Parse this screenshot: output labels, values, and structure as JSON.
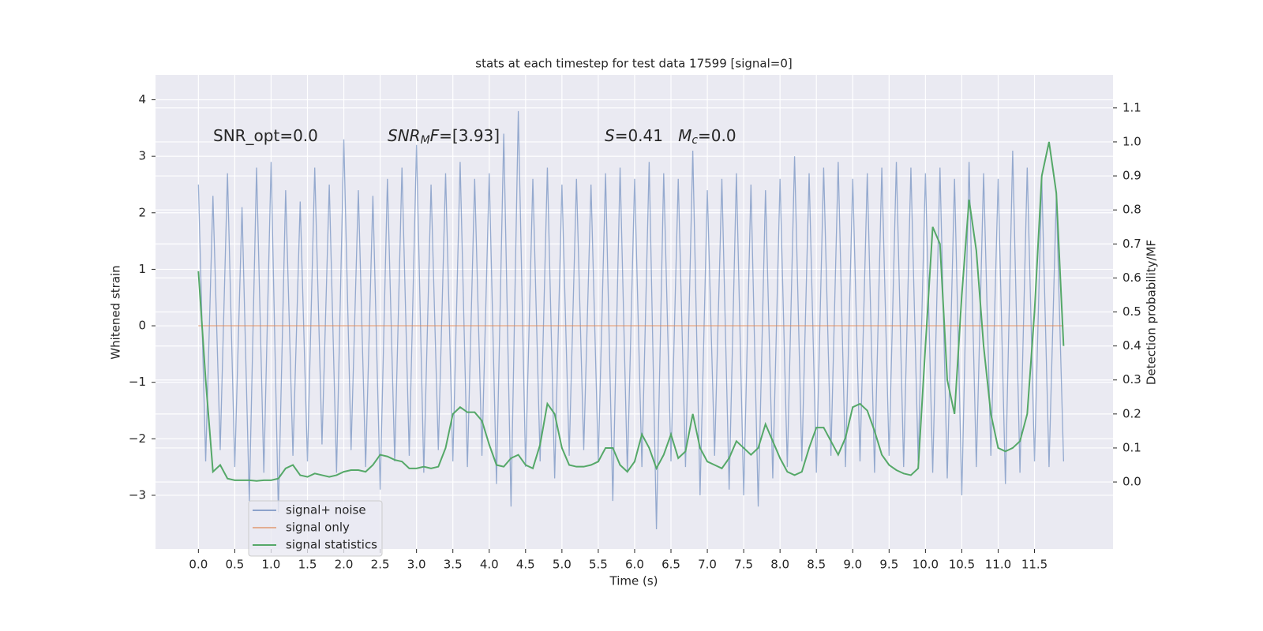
{
  "chart_data": {
    "type": "line",
    "title": "stats at each timestep for test data 17599 [signal=0]",
    "xlabel": "Time (s)",
    "ylabel": "Whitened strain",
    "y2label": "Detection probability/MF",
    "x": [
      0,
      0.1,
      0.2,
      0.3,
      0.4,
      0.5,
      0.6,
      0.7,
      0.8,
      0.9,
      1,
      1.1,
      1.2,
      1.3,
      1.4,
      1.5,
      1.6,
      1.7,
      1.8,
      1.9,
      2,
      2.1,
      2.2,
      2.3,
      2.4,
      2.5,
      2.6,
      2.7,
      2.8,
      2.9,
      3,
      3.1,
      3.2,
      3.3,
      3.4,
      3.5,
      3.6,
      3.7,
      3.8,
      3.9,
      4,
      4.1,
      4.2,
      4.3,
      4.4,
      4.5,
      4.6,
      4.7,
      4.8,
      4.9,
      5,
      5.1,
      5.2,
      5.3,
      5.4,
      5.5,
      5.6,
      5.7,
      5.8,
      5.9,
      6,
      6.1,
      6.2,
      6.3,
      6.4,
      6.5,
      6.6,
      6.7,
      6.8,
      6.9,
      7,
      7.1,
      7.2,
      7.3,
      7.4,
      7.5,
      7.6,
      7.7,
      7.8,
      7.9,
      8,
      8.1,
      8.2,
      8.3,
      8.4,
      8.5,
      8.6,
      8.7,
      8.8,
      8.9,
      9,
      9.1,
      9.2,
      9.3,
      9.4,
      9.5,
      9.6,
      9.7,
      9.8,
      9.9,
      10,
      10.1,
      10.2,
      10.3,
      10.4,
      10.5,
      10.6,
      10.7,
      10.8,
      10.9,
      11,
      11.1,
      11.2,
      11.3,
      11.4,
      11.5,
      11.6,
      11.7,
      11.8,
      11.9
    ],
    "series": [
      {
        "name": "signal+ noise",
        "color": "#4c72b0",
        "values": [
          2.5,
          -2.4,
          2.3,
          -2.2,
          2.7,
          -2.5,
          2.1,
          -3.1,
          2.8,
          -2.6,
          2.9,
          -3.3,
          2.4,
          -2.3,
          2.2,
          -2.4,
          2.8,
          -2.1,
          2.5,
          -2.6,
          3.3,
          -2.2,
          2.4,
          -2.5,
          2.3,
          -2.9,
          2.6,
          -2.4,
          2.8,
          -2.3,
          3.2,
          -2.6,
          2.5,
          -2.2,
          2.7,
          -2.4,
          2.9,
          -2.5,
          2.6,
          -2.3,
          2.7,
          -2.8,
          3.4,
          -3.2,
          3.8,
          -2.5,
          2.6,
          -2.4,
          2.8,
          -2.7,
          2.5,
          -2.3,
          2.6,
          -2.2,
          2.5,
          -2.4,
          2.7,
          -3.1,
          2.8,
          -2.6,
          2.6,
          -2.5,
          2.9,
          -3.6,
          2.7,
          -2.4,
          2.6,
          -2.5,
          3.1,
          -3.0,
          2.4,
          -2.3,
          2.6,
          -2.9,
          2.7,
          -3.0,
          2.5,
          -3.2,
          2.4,
          -2.7,
          2.6,
          -2.5,
          3.0,
          -2.4,
          2.7,
          -2.6,
          2.8,
          -2.3,
          2.9,
          -2.5,
          2.6,
          -2.4,
          2.7,
          -2.6,
          2.8,
          -2.3,
          2.9,
          -2.5,
          2.8,
          -2.4,
          2.7,
          -2.6,
          2.8,
          -2.7,
          2.6,
          -3.0,
          2.9,
          -2.5,
          2.7,
          -2.3,
          2.6,
          -2.8,
          3.1,
          -2.6,
          2.8,
          -2.4,
          2.6,
          -2.5,
          2.3,
          -2.4
        ]
      },
      {
        "name": "signal only",
        "color": "#dd8452",
        "values": [
          0,
          0,
          0,
          0,
          0,
          0,
          0,
          0,
          0,
          0,
          0,
          0,
          0,
          0,
          0,
          0,
          0,
          0,
          0,
          0,
          0,
          0,
          0,
          0,
          0,
          0,
          0,
          0,
          0,
          0,
          0,
          0,
          0,
          0,
          0,
          0,
          0,
          0,
          0,
          0,
          0,
          0,
          0,
          0,
          0,
          0,
          0,
          0,
          0,
          0,
          0,
          0,
          0,
          0,
          0,
          0,
          0,
          0,
          0,
          0,
          0,
          0,
          0,
          0,
          0,
          0,
          0,
          0,
          0,
          0,
          0,
          0,
          0,
          0,
          0,
          0,
          0,
          0,
          0,
          0,
          0,
          0,
          0,
          0,
          0,
          0,
          0,
          0,
          0,
          0,
          0,
          0,
          0,
          0,
          0,
          0,
          0,
          0,
          0,
          0,
          0,
          0,
          0,
          0,
          0,
          0,
          0,
          0,
          0,
          0,
          0,
          0,
          0,
          0,
          0,
          0,
          0,
          0,
          0,
          0
        ]
      },
      {
        "name": "signal statistics",
        "color": "#55a868",
        "axis": "y2",
        "values": [
          0.62,
          0.3,
          0.03,
          0.05,
          0.01,
          0.005,
          0.005,
          0.005,
          0.003,
          0.005,
          0.005,
          0.01,
          0.04,
          0.05,
          0.02,
          0.015,
          0.025,
          0.02,
          0.015,
          0.02,
          0.03,
          0.035,
          0.035,
          0.03,
          0.05,
          0.08,
          0.075,
          0.065,
          0.06,
          0.04,
          0.04,
          0.045,
          0.04,
          0.045,
          0.1,
          0.2,
          0.22,
          0.205,
          0.205,
          0.18,
          0.11,
          0.05,
          0.045,
          0.07,
          0.08,
          0.05,
          0.04,
          0.11,
          0.23,
          0.2,
          0.1,
          0.05,
          0.045,
          0.045,
          0.05,
          0.06,
          0.1,
          0.1,
          0.05,
          0.03,
          0.06,
          0.14,
          0.1,
          0.04,
          0.08,
          0.14,
          0.07,
          0.09,
          0.2,
          0.1,
          0.06,
          0.05,
          0.04,
          0.07,
          0.12,
          0.1,
          0.08,
          0.1,
          0.17,
          0.12,
          0.07,
          0.03,
          0.02,
          0.03,
          0.1,
          0.16,
          0.16,
          0.12,
          0.08,
          0.13,
          0.22,
          0.23,
          0.21,
          0.15,
          0.08,
          0.05,
          0.035,
          0.025,
          0.02,
          0.04,
          0.4,
          0.75,
          0.7,
          0.3,
          0.2,
          0.55,
          0.83,
          0.68,
          0.4,
          0.2,
          0.1,
          0.09,
          0.1,
          0.12,
          0.2,
          0.5,
          0.9,
          1.0,
          0.85,
          0.4
        ]
      }
    ],
    "annotations": [
      {
        "parts": [
          "SNR_opt=0.0"
        ],
        "styles": [
          "normal"
        ]
      },
      {
        "parts": [
          "SNR",
          "M",
          "F",
          "=[3.93]"
        ],
        "styles": [
          "italic",
          "italic-sub",
          "italic",
          "normal"
        ]
      },
      {
        "parts": [
          "S",
          "=0.41   ",
          "M",
          "c",
          "=0.0"
        ],
        "styles": [
          "italic",
          "normal",
          "italic",
          "italic-sub",
          "normal"
        ]
      }
    ],
    "xlim": [
      -0.59,
      12.58
    ],
    "xticks": [
      {
        "value": 0,
        "label": "0.0"
      },
      0.5,
      {
        "value": 1,
        "label": "1.0"
      },
      1.5,
      {
        "value": 2,
        "label": "2.0"
      },
      2.5,
      {
        "value": 3,
        "label": "3.0"
      },
      3.5,
      {
        "value": 4,
        "label": "4.0"
      },
      4.5,
      {
        "value": 5,
        "label": "5.0"
      },
      5.5,
      {
        "value": 6,
        "label": "6.0"
      },
      6.5,
      {
        "value": 7,
        "label": "7.0"
      },
      7.5,
      {
        "value": 8,
        "label": "8.0"
      },
      8.5,
      {
        "value": 9,
        "label": "9.0"
      },
      9.5,
      {
        "value": 10,
        "label": "10.0"
      },
      10.5,
      {
        "value": 11,
        "label": "11.0"
      },
      11.5
    ],
    "ylim": [
      -3.95,
      4.44
    ],
    "yticks": [
      {
        "value": -3,
        "label": "−3"
      },
      {
        "value": -2,
        "label": "−2"
      },
      {
        "value": -1,
        "label": "−1"
      },
      0,
      1,
      2,
      3,
      4
    ],
    "y2lim": [
      -0.197,
      1.197
    ],
    "y2ticks": [
      {
        "value": 0,
        "label": "0.0"
      },
      0.1,
      0.2,
      0.3,
      0.4,
      0.5,
      0.6,
      0.7,
      0.8,
      0.9,
      {
        "value": 1,
        "label": "1.0"
      },
      1.1
    ],
    "grid": true,
    "legend": "lower left"
  }
}
